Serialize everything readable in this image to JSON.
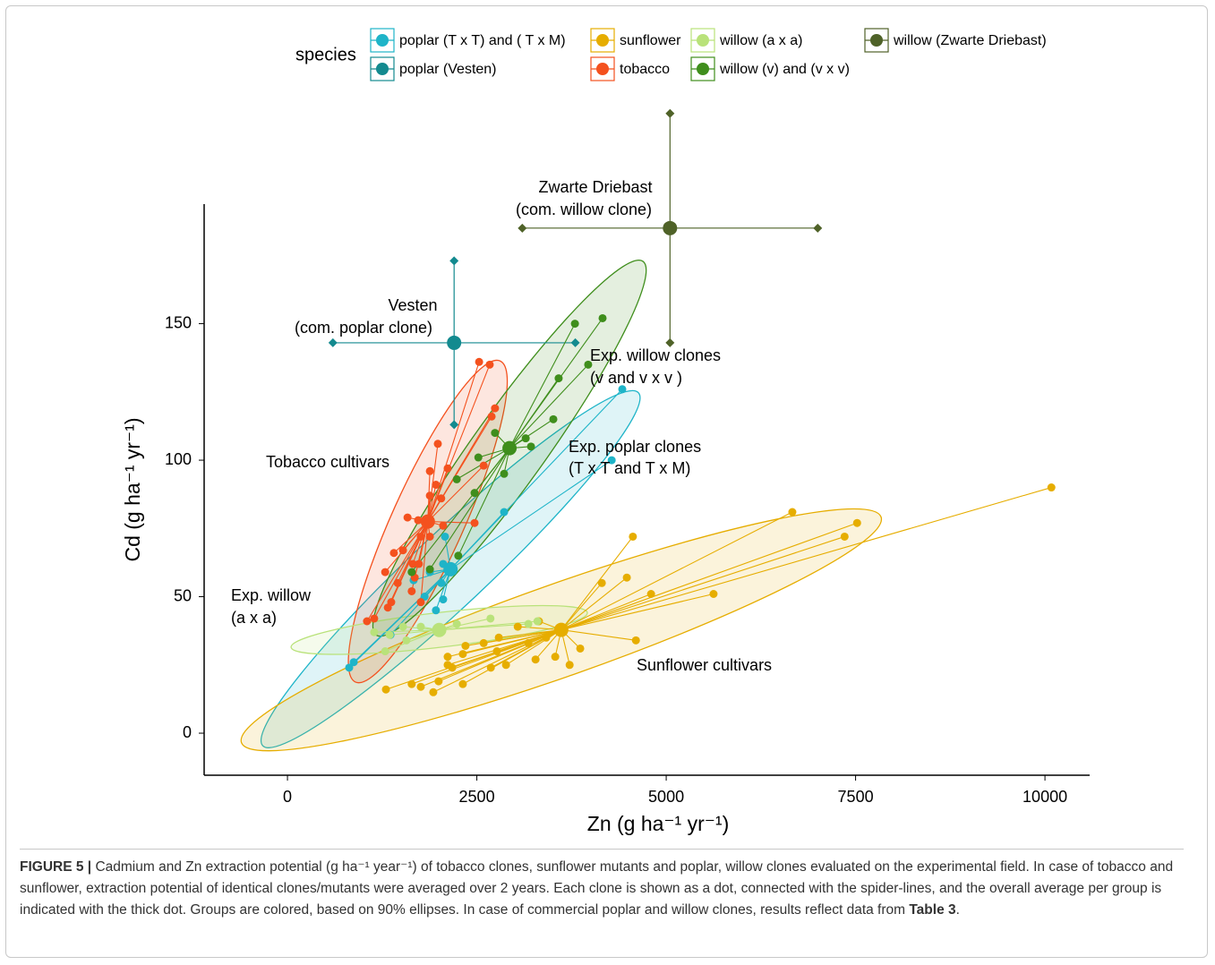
{
  "chart_data": {
    "type": "scatter",
    "xlabel": "Zn (g ha⁻¹ yr⁻¹)",
    "ylabel": "Cd (g ha⁻¹ yr⁻¹)",
    "legend_title": "species",
    "legend_position": "top",
    "xlim": [
      -1100,
      10590
    ],
    "ylim": [
      -15.4,
      193.8
    ],
    "xticks": [
      0,
      2500,
      5000,
      7500,
      10000
    ],
    "yticks": [
      0,
      50,
      100,
      150
    ],
    "grid": false,
    "series": [
      {
        "name": "poplar (T x T) and ( T x M)",
        "color": "#1eb4c8",
        "x": [
          4420,
          4280,
          2860,
          2080,
          2055,
          2030,
          2055,
          1960,
          1810,
          1665,
          1360,
          875,
          815,
          1880
        ],
        "y": [
          126,
          100,
          81,
          72,
          62,
          55,
          49,
          45,
          50,
          56,
          36,
          26,
          24,
          59
        ]
      },
      {
        "name": "poplar (Vesten)",
        "color": "#138a8f",
        "x": [
          2200
        ],
        "y": [
          143
        ],
        "xerr": [
          1600
        ],
        "yerr": [
          30
        ]
      },
      {
        "name": "sunflower",
        "color": "#e6ad00",
        "x": [
          10085,
          6665,
          7520,
          7355,
          5625,
          4560,
          4480,
          4150,
          4800,
          4600,
          3865,
          3725,
          3535,
          3275,
          3320,
          3040,
          2790,
          2590,
          2350,
          2315,
          2115,
          2175,
          2315,
          1995,
          1925,
          1760,
          1640,
          1300,
          2685,
          2885,
          3180,
          3415,
          3595,
          2765,
          2115
        ],
        "y": [
          90,
          81,
          77,
          72,
          51,
          72,
          57,
          55,
          51,
          34,
          31,
          25,
          28,
          27,
          41,
          39,
          35,
          33,
          32,
          29,
          28,
          24,
          18,
          19,
          15,
          17,
          18,
          16,
          24,
          25,
          33,
          35,
          38,
          30,
          25
        ]
      },
      {
        "name": "tobacco",
        "color": "#f4511e",
        "x": [
          2530,
          2670,
          2740,
          2695,
          2590,
          2115,
          1985,
          1880,
          1960,
          1880,
          2030,
          2055,
          2470,
          1585,
          1725,
          1760,
          1405,
          1290,
          1455,
          1640,
          1760,
          1325,
          1370,
          1145,
          1050,
          1655,
          1735,
          1880,
          1525,
          1680
        ],
        "y": [
          136,
          135,
          119,
          116,
          98,
          97,
          106,
          96,
          91,
          87,
          86,
          76,
          77,
          79,
          78,
          72,
          66,
          59,
          55,
          52,
          48,
          46,
          48,
          42,
          41,
          62,
          62,
          72,
          67,
          57
        ]
      },
      {
        "name": "willow (a x a)",
        "color": "#b9e27a",
        "x": [
          2680,
          2235,
          1525,
          1350,
          1145,
          1570,
          1290,
          3180,
          3300,
          1760
        ],
        "y": [
          42,
          40,
          39,
          36,
          37,
          34,
          30,
          40,
          41,
          39
        ]
      },
      {
        "name": "willow (v) and (v x v)",
        "color": "#3f8e1c",
        "x": [
          4160,
          3795,
          3970,
          3580,
          3510,
          3145,
          3215,
          2740,
          2860,
          2520,
          2235,
          2470,
          2255,
          1880,
          1640
        ],
        "y": [
          152,
          150,
          135,
          130,
          115,
          108,
          105,
          110,
          95,
          101,
          93,
          88,
          65,
          60,
          59
        ]
      },
      {
        "name": "willow (Zwarte Driebast)",
        "color": "#4f6228",
        "x": [
          5050
        ],
        "y": [
          185
        ],
        "xerr": [
          1950
        ],
        "yerr": [
          42
        ]
      }
    ],
    "annotations": [
      "Zwarte Driebast",
      "(com. willow clone)",
      "Vesten",
      "(com. poplar clone)",
      "Exp. willow clones",
      "(v and v x v )",
      "Exp. poplar clones",
      "(T x T and T x M)",
      "Tobacco cultivars",
      "Exp. willow",
      "(a x a)",
      "Sunflower cultivars"
    ]
  },
  "caption": {
    "label": "FIGURE 5 |",
    "text": " Cadmium and Zn extraction potential (g ha⁻¹ year⁻¹) of tobacco clones, sunflower mutants and poplar, willow clones evaluated on the experimental field. In case of tobacco and sunflower, extraction potential of identical clones/mutants were averaged over 2 years. Each clone is shown as a dot, connected with the spider-lines, and the overall average per group is indicated with the thick dot. Groups are colored, based on 90% ellipses. In case of commercial poplar and willow clones, results reflect data from ",
    "ref": "Table 3",
    "end": "."
  }
}
